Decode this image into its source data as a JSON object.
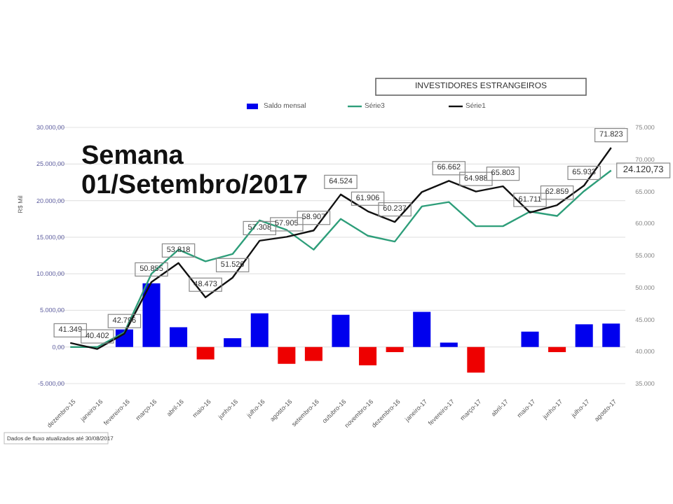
{
  "chart_data": {
    "type": "bar",
    "title": "INVESTIDORES ESTRANGEIROS",
    "ylabel": "R$ Mil",
    "annotations": [
      "Semana",
      "01/Setembro/2017",
      "Dados de fluxo atualizados até 30/08/2017"
    ],
    "categories": [
      "dezembro-15",
      "janeiro-16",
      "fevereiro-16",
      "março-16",
      "abril-16",
      "maio-16",
      "junho-16",
      "julho-16",
      "agosto-16",
      "setembro-16",
      "outubro-16",
      "novembro-16",
      "dezembro-16",
      "janeiro-17",
      "fevereiro-17",
      "março-17",
      "abril-17",
      "maio-17",
      "junho-17",
      "julho-17",
      "agosto-17"
    ],
    "series": [
      {
        "name": "Saldo mensal",
        "color": "#0000ee",
        "colors": [
          "#0000ee",
          "#0000ee",
          "#0000ee",
          "#0000ee",
          "#0000ee",
          "#ee0000",
          "#0000ee",
          "#0000ee",
          "#ee0000",
          "#ee0000",
          "#0000ee",
          "#ee0000",
          "#ee0000",
          "#0000ee",
          "#0000ee",
          "#ee0000",
          "#0000ee",
          "#0000ee",
          "#ee0000",
          "#0000ee",
          "#0000ee"
        ],
        "values": [
          0,
          0,
          2400,
          8700,
          2700,
          -1700,
          1200,
          4600,
          -2300,
          -1900,
          4400,
          -2500,
          -700,
          4800,
          600,
          -3500,
          0,
          2100,
          -700,
          3100,
          3200
        ]
      },
      {
        "name": "Série3",
        "type": "line",
        "color": "#2e9e7a",
        "values": [
          0,
          0,
          2000,
          10000,
          13300,
          11700,
          12700,
          17300,
          16000,
          13300,
          17500,
          15200,
          14400,
          19200,
          19800,
          16500,
          16500,
          18500,
          17900,
          21300,
          24120.73
        ],
        "value_labels": [
          null,
          null,
          null,
          null,
          null,
          null,
          null,
          null,
          null,
          null,
          null,
          null,
          null,
          null,
          null,
          null,
          null,
          null,
          null,
          null,
          "24.120,73"
        ]
      },
      {
        "name": "Série1",
        "type": "line",
        "axis": "y2",
        "color": "#111111",
        "values": [
          41349,
          40402,
          42796,
          50855,
          53818,
          48473,
          51526,
          57308,
          57905,
          58907,
          64524,
          61906,
          60237,
          64900,
          66662,
          64988,
          65803,
          61711,
          62859,
          65933,
          71823
        ],
        "value_labels": [
          "41.349",
          "40.402",
          "42.796",
          "50.855",
          "53.818",
          "48.473",
          "51.526",
          "57.308",
          "57.905",
          "58.907",
          "64.524",
          "61.906",
          "60.237",
          null,
          "66.662",
          "64.988",
          "65.803",
          "61.711",
          "62.859",
          "65.933",
          "71.823"
        ]
      }
    ],
    "ylim": [
      -5000,
      30000
    ],
    "yticks": [
      {
        "value": -5000,
        "label": "-5.000,00"
      },
      {
        "value": 0,
        "label": "0,00"
      },
      {
        "value": 5000,
        "label": "5.000,00"
      },
      {
        "value": 10000,
        "label": "10.000,00"
      },
      {
        "value": 15000,
        "label": "15.000,00"
      },
      {
        "value": 20000,
        "label": "20.000,00"
      },
      {
        "value": 25000,
        "label": "25.000,00"
      },
      {
        "value": 30000,
        "label": "30.000,00"
      }
    ],
    "y2lim": [
      35000,
      75000
    ],
    "y2ticks": [
      {
        "value": 35000,
        "label": "35.000"
      },
      {
        "value": 40000,
        "label": "40.000"
      },
      {
        "value": 45000,
        "label": "45.000"
      },
      {
        "value": 50000,
        "label": "50.000"
      },
      {
        "value": 55000,
        "label": "55.000"
      },
      {
        "value": 60000,
        "label": "60.000"
      },
      {
        "value": 65000,
        "label": "65.000"
      },
      {
        "value": 70000,
        "label": "70.000"
      },
      {
        "value": 75000,
        "label": "75.000"
      }
    ],
    "grid": "y",
    "legend": "top",
    "marker": "none",
    "line_style": "solid"
  }
}
